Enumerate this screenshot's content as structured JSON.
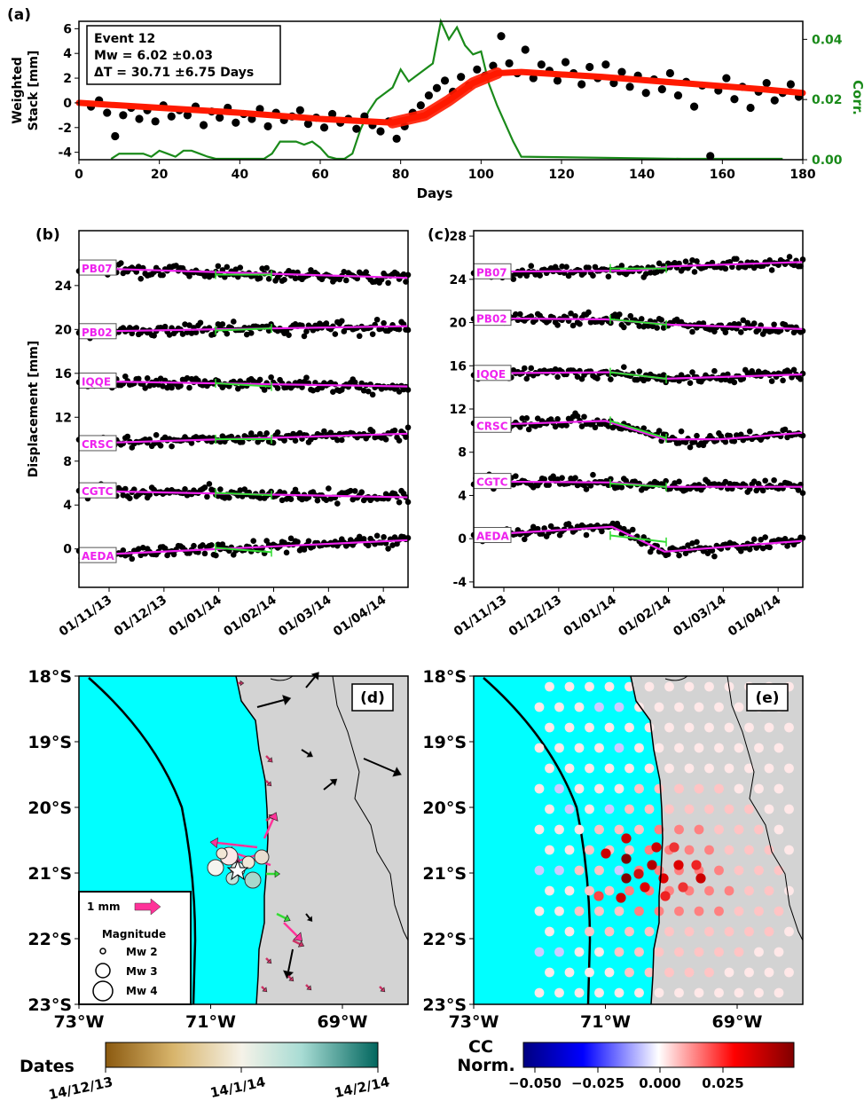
{
  "panel_a": {
    "letter": "(a)",
    "info": [
      "Event 12",
      "Mw = 6.02 ±0.03",
      "ΔT = 30.71 ±6.75 Days"
    ],
    "ylabel_lines": [
      "Weighted",
      "Stack [mm]"
    ],
    "y2label": "Corr.",
    "xlabel": "Days",
    "xticks": [
      0,
      20,
      40,
      60,
      80,
      100,
      120,
      140,
      160,
      180
    ],
    "yticks": [
      6,
      4,
      2,
      0,
      -2,
      -4
    ],
    "y2ticks": [
      "0.04",
      "0.02",
      "0.00"
    ]
  },
  "panel_b": {
    "letter": "(b)",
    "ylabel": "Displacement [mm]",
    "yticks": [
      24,
      20,
      16,
      12,
      8,
      4,
      0
    ],
    "xticks": [
      "01/11/13",
      "01/12/13",
      "01/01/14",
      "01/02/14",
      "01/03/14",
      "01/04/14"
    ]
  },
  "panel_c": {
    "letter": "(c)",
    "yticks": [
      28,
      24,
      20,
      16,
      12,
      8,
      4,
      0,
      -4
    ],
    "xticks": [
      "01/11/13",
      "01/12/13",
      "01/01/14",
      "01/02/14",
      "01/03/14",
      "01/04/14"
    ]
  },
  "stations": [
    "PB07",
    "PB02",
    "IQQE",
    "CRSC",
    "CGTC",
    "AEDA"
  ],
  "panel_d": {
    "letter": "(d)",
    "yticks": [
      "18°S",
      "19°S",
      "20°S",
      "21°S",
      "22°S",
      "23°S"
    ],
    "xticks": [
      "73°W",
      "71°W",
      "69°W"
    ],
    "legend_scale": "1 mm",
    "legend_title": "Magnitude",
    "legend_items": [
      "Mw 2",
      "Mw 3",
      "Mw 4"
    ],
    "colorbar_label": "Dates",
    "colorbar_ticks": [
      "14/12/13",
      "14/1/14",
      "14/2/14"
    ]
  },
  "panel_e": {
    "letter": "(e)",
    "yticks": [
      "18°S",
      "19°S",
      "20°S",
      "21°S",
      "22°S",
      "23°S"
    ],
    "xticks": [
      "73°W",
      "71°W",
      "69°W"
    ],
    "colorbar_label_lines": [
      "CC",
      "Norm."
    ],
    "colorbar_ticks": [
      "−0.050",
      "−0.025",
      "0.000",
      "0.025"
    ]
  },
  "colors": {
    "fit_red": "#ff1a00",
    "corr_green": "#1a8a1a",
    "magenta": "#ee22ee",
    "green_seg": "#33dd33",
    "ocean": "#00ffff",
    "land": "#d3d3d3",
    "arrow_pink": "#ff3399"
  },
  "chart_data": [
    {
      "type": "scatter",
      "panel": "a",
      "xlabel": "Days",
      "ylabel": "Weighted Stack [mm]",
      "y2label": "Corr.",
      "xlim": [
        0,
        180
      ],
      "ylim": [
        -4.6,
        6.6
      ],
      "y2lim": [
        0,
        0.046
      ],
      "series": [
        {
          "points": [
            [
              3,
              -0.3
            ],
            [
              5,
              0.2
            ],
            [
              7,
              -0.8
            ],
            [
              9,
              -2.7
            ],
            [
              11,
              -1.0
            ],
            [
              13,
              -0.4
            ],
            [
              15,
              -1.3
            ],
            [
              17,
              -0.6
            ],
            [
              19,
              -1.5
            ],
            [
              21,
              -0.2
            ],
            [
              23,
              -1.1
            ],
            [
              25,
              -0.6
            ],
            [
              27,
              -1.0
            ],
            [
              29,
              -0.3
            ],
            [
              31,
              -1.8
            ],
            [
              33,
              -0.7
            ],
            [
              35,
              -1.2
            ],
            [
              37,
              -0.4
            ],
            [
              39,
              -1.6
            ],
            [
              41,
              -0.9
            ],
            [
              43,
              -1.3
            ],
            [
              45,
              -0.5
            ],
            [
              47,
              -1.9
            ],
            [
              49,
              -0.8
            ],
            [
              51,
              -1.4
            ],
            [
              53,
              -1.1
            ],
            [
              55,
              -0.6
            ],
            [
              57,
              -1.7
            ],
            [
              59,
              -1.2
            ],
            [
              61,
              -2.0
            ],
            [
              63,
              -0.9
            ],
            [
              65,
              -1.6
            ],
            [
              67,
              -1.3
            ],
            [
              69,
              -2.1
            ],
            [
              71,
              -1.1
            ],
            [
              73,
              -1.8
            ],
            [
              75,
              -2.3
            ],
            [
              77,
              -1.5
            ],
            [
              79,
              -2.9
            ],
            [
              81,
              -1.9
            ],
            [
              83,
              -0.8
            ],
            [
              85,
              -0.2
            ],
            [
              87,
              0.6
            ],
            [
              89,
              1.2
            ],
            [
              91,
              1.8
            ],
            [
              93,
              0.9
            ],
            [
              95,
              2.1
            ],
            [
              97,
              1.4
            ],
            [
              99,
              2.7
            ],
            [
              101,
              2.2
            ],
            [
              103,
              3.0
            ],
            [
              105,
              5.4
            ],
            [
              107,
              3.2
            ],
            [
              109,
              2.4
            ],
            [
              111,
              4.3
            ],
            [
              113,
              2.0
            ],
            [
              115,
              3.1
            ],
            [
              117,
              2.6
            ],
            [
              119,
              1.8
            ],
            [
              121,
              3.3
            ],
            [
              123,
              2.4
            ],
            [
              125,
              1.5
            ],
            [
              127,
              2.9
            ],
            [
              129,
              2.0
            ],
            [
              131,
              3.1
            ],
            [
              133,
              1.6
            ],
            [
              135,
              2.5
            ],
            [
              137,
              1.3
            ],
            [
              139,
              2.2
            ],
            [
              141,
              0.8
            ],
            [
              143,
              1.9
            ],
            [
              145,
              1.1
            ],
            [
              147,
              2.4
            ],
            [
              149,
              0.6
            ],
            [
              151,
              1.7
            ],
            [
              153,
              -0.3
            ],
            [
              155,
              1.4
            ],
            [
              157,
              -4.3
            ],
            [
              159,
              1.0
            ],
            [
              161,
              2.0
            ],
            [
              163,
              0.3
            ],
            [
              165,
              1.3
            ],
            [
              167,
              -0.4
            ],
            [
              169,
              0.9
            ],
            [
              171,
              1.6
            ],
            [
              173,
              0.2
            ],
            [
              175,
              0.8
            ],
            [
              177,
              1.5
            ],
            [
              179,
              0.5
            ]
          ]
        },
        {
          "name": "",
          "kind": "fit",
          "x": [
            0,
            20,
            40,
            60,
            78,
            86,
            92,
            98,
            104,
            110,
            130,
            150,
            170,
            180
          ],
          "y": [
            0,
            -0.4,
            -0.8,
            -1.3,
            -1.6,
            -1.0,
            0.2,
            1.6,
            2.4,
            2.5,
            2.1,
            1.6,
            1.1,
            0.8
          ]
        },
        {
          "name": "",
          "kind": "correlation",
          "x": [
            8,
            10,
            12,
            14,
            16,
            18,
            20,
            22,
            24,
            26,
            28,
            30,
            32,
            34,
            36,
            46,
            48,
            50,
            52,
            54,
            56,
            58,
            60,
            62,
            64,
            66,
            68,
            70,
            72,
            74,
            76,
            78,
            80,
            82,
            84,
            86,
            88,
            90,
            92,
            94,
            96,
            98,
            100,
            102,
            104,
            106,
            108,
            110,
            150,
            160,
            170,
            175
          ],
          "y": [
            0,
            0.002,
            0.002,
            0.002,
            0.002,
            0.001,
            0.003,
            0.002,
            0.001,
            0.003,
            0.003,
            0.002,
            0.001,
            0,
            0,
            0,
            0.002,
            0.006,
            0.006,
            0.006,
            0.005,
            0.006,
            0.004,
            0.001,
            0,
            0,
            0.002,
            0.01,
            0.016,
            0.02,
            0.022,
            0.024,
            0.03,
            0.026,
            0.028,
            0.03,
            0.032,
            0.046,
            0.04,
            0.044,
            0.038,
            0.035,
            0.036,
            0.025,
            0.018,
            0.012,
            0.006,
            0.001,
            0,
            0,
            0,
            0
          ]
        }
      ]
    },
    {
      "type": "scatter",
      "panel": "b",
      "ylabel": "Displacement [mm]",
      "ylim": [
        -3.5,
        29
      ],
      "x_categories": [
        "01/11/13",
        "01/12/13",
        "01/01/14",
        "01/02/14",
        "01/03/14",
        "01/04/14"
      ],
      "series": [
        {
          "name": "PB07",
          "offset": 25.5,
          "fit_start": 25.6,
          "fit_end": 24.7,
          "seg": [
            25.0,
            25.0
          ]
        },
        {
          "name": "PB02",
          "offset": 20.0,
          "fit_start": 19.8,
          "fit_end": 20.3,
          "seg": [
            19.9,
            20.1
          ]
        },
        {
          "name": "IQQE",
          "offset": 15.0,
          "fit_start": 15.3,
          "fit_end": 14.8,
          "seg": [
            15.1,
            14.8
          ]
        },
        {
          "name": "CRSC",
          "offset": 10.0,
          "fit_start": 9.6,
          "fit_end": 10.5,
          "seg": [
            10.0,
            10.0
          ]
        },
        {
          "name": "CGTC",
          "offset": 5.0,
          "fit_start": 5.3,
          "fit_end": 4.7,
          "seg": [
            5.1,
            4.9
          ]
        },
        {
          "name": "AEDA",
          "offset": 0.0,
          "fit_start": -0.6,
          "fit_end": 0.8,
          "seg": [
            0.1,
            -0.3
          ]
        }
      ]
    },
    {
      "type": "scatter",
      "panel": "c",
      "ylim": [
        -4.5,
        28.5
      ],
      "x_categories": [
        "01/11/13",
        "01/12/13",
        "01/01/14",
        "01/02/14",
        "01/03/14",
        "01/04/14"
      ],
      "series": [
        {
          "name": "PB07",
          "offset": 24.8,
          "fit": [
            [
              0,
              24.7
            ],
            [
              0.5,
              24.8
            ],
            [
              0.6,
              25.2
            ],
            [
              1,
              25.6
            ]
          ],
          "seg": [
            25.0,
            25.0
          ]
        },
        {
          "name": "PB02",
          "offset": 20.0,
          "fit": [
            [
              0,
              20.4
            ],
            [
              0.4,
              20.3
            ],
            [
              0.6,
              19.8
            ],
            [
              1,
              19.4
            ]
          ],
          "seg": [
            20.3,
            19.8
          ]
        },
        {
          "name": "IQQE",
          "offset": 15.0,
          "fit": [
            [
              0,
              15.3
            ],
            [
              0.42,
              15.4
            ],
            [
              0.58,
              14.8
            ],
            [
              1,
              15.2
            ]
          ],
          "seg": [
            15.4,
            14.8
          ]
        },
        {
          "name": "CRSC",
          "offset": 10.2,
          "fit": [
            [
              0,
              10.5
            ],
            [
              0.4,
              10.9
            ],
            [
              0.58,
              9.2
            ],
            [
              0.75,
              9.2
            ],
            [
              1,
              9.8
            ]
          ],
          "seg": [
            10.9,
            9.3
          ]
        },
        {
          "name": "CGTC",
          "offset": 5.0,
          "fit": [
            [
              0,
              5.3
            ],
            [
              0.42,
              5.2
            ],
            [
              0.58,
              4.8
            ],
            [
              1,
              4.8
            ]
          ],
          "seg": [
            5.1,
            4.8
          ]
        },
        {
          "name": "AEDA",
          "offset": 0.0,
          "fit": [
            [
              0,
              0.3
            ],
            [
              0.42,
              1.1
            ],
            [
              0.58,
              -1.2
            ],
            [
              1,
              -0.2
            ]
          ],
          "seg": [
            0.3,
            -0.3
          ]
        }
      ]
    }
  ]
}
